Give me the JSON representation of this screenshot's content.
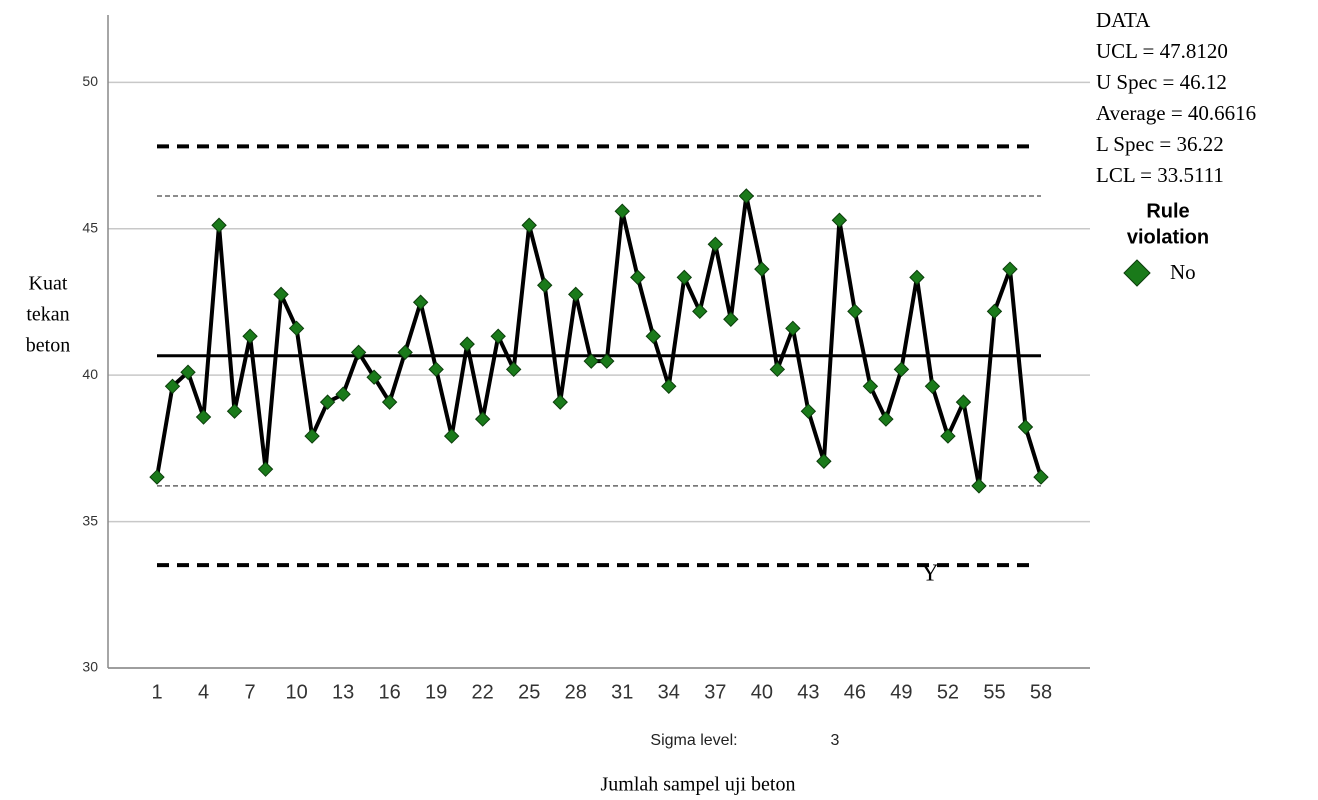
{
  "chart_data": {
    "type": "line",
    "y_label": [
      "Kuat",
      "tekan",
      "beton"
    ],
    "x_label": "Jumlah sampel uji beton",
    "sigma_label": "Sigma level:",
    "sigma_value": "3",
    "annotation": "Y",
    "stats": [
      "DATA",
      "UCL = 47.8120",
      "U Spec = 46.12",
      "Average = 40.6616",
      "L Spec = 36.22",
      "LCL = 33.5111"
    ],
    "legend_title": [
      "Rule",
      "violation"
    ],
    "categories": [
      "1",
      null,
      null,
      "4",
      null,
      null,
      "7",
      null,
      null,
      "10",
      null,
      null,
      "13",
      null,
      null,
      "16",
      null,
      null,
      "19",
      null,
      null,
      "22",
      null,
      null,
      "25",
      null,
      null,
      "28",
      null,
      null,
      "31",
      null,
      null,
      "34",
      null,
      null,
      "37",
      null,
      null,
      "40",
      null,
      null,
      "43",
      null,
      null,
      "46",
      null,
      null,
      "49",
      null,
      null,
      "52",
      null,
      null,
      "55",
      null,
      null,
      "58"
    ],
    "series": [
      {
        "name": "No",
        "color": "#1a7a1a",
        "line_color": "#000000",
        "values": [
          36.52,
          39.62,
          40.1,
          38.57,
          45.12,
          38.77,
          41.33,
          36.79,
          42.76,
          41.6,
          37.92,
          39.08,
          39.35,
          40.78,
          39.93,
          39.08,
          40.78,
          42.49,
          40.2,
          37.92,
          41.06,
          38.5,
          41.33,
          40.2,
          45.12,
          43.07,
          39.08,
          42.76,
          40.48,
          40.48,
          45.6,
          43.34,
          41.33,
          39.62,
          43.34,
          42.18,
          44.47,
          41.91,
          46.12,
          43.62,
          40.2,
          41.6,
          38.77,
          37.06,
          45.29,
          42.18,
          39.62,
          38.5,
          40.2,
          43.34,
          39.62,
          37.92,
          39.08,
          36.22,
          42.18,
          43.62,
          38.23,
          36.52
        ]
      }
    ],
    "control_lines": [
      {
        "value": 47.812,
        "style": "control"
      },
      {
        "value": 46.12,
        "style": "spec"
      },
      {
        "value": 40.6616,
        "style": "center"
      },
      {
        "value": 36.22,
        "style": "spec"
      },
      {
        "value": 33.5111,
        "style": "control"
      }
    ],
    "ylim": [
      30,
      52.3
    ],
    "yticks": [
      30,
      35,
      40,
      45,
      50
    ],
    "grid": true
  }
}
